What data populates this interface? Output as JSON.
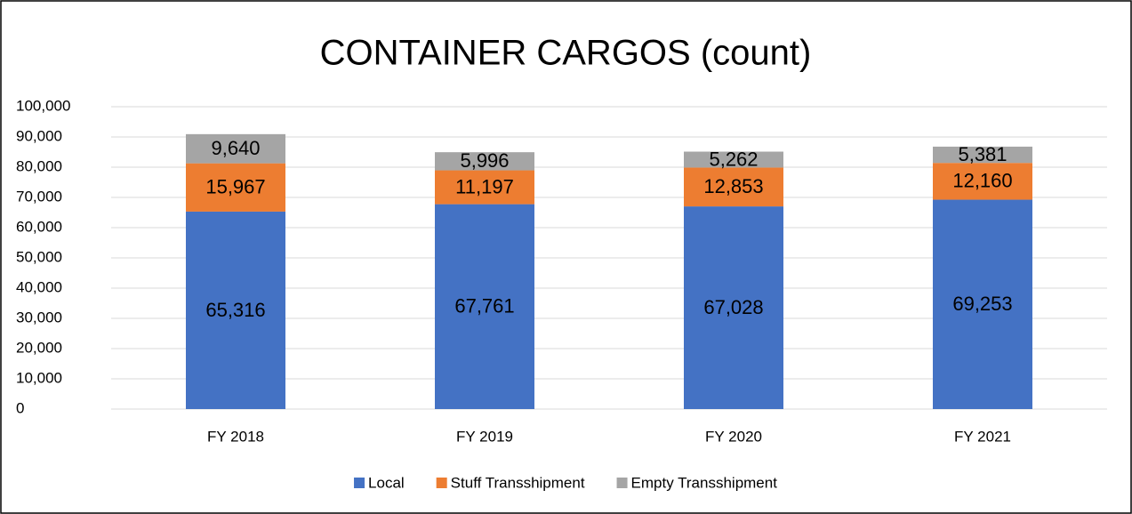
{
  "chart_data": {
    "type": "bar",
    "stacked": true,
    "title": "CONTAINER CARGOS (count)",
    "categories": [
      "FY 2018",
      "FY 2019",
      "FY 2020",
      "FY 2021"
    ],
    "series": [
      {
        "name": "Local",
        "color": "#4472c4",
        "values": [
          65316,
          67761,
          67028,
          69253
        ],
        "value_labels": [
          "65,316",
          "67,761",
          "67,028",
          "69,253"
        ]
      },
      {
        "name": "Stuff Transshipment",
        "color": "#ed7d31",
        "values": [
          15967,
          11197,
          12853,
          12160
        ],
        "value_labels": [
          "15,967",
          "11,197",
          "12,853",
          "12,160"
        ]
      },
      {
        "name": "Empty Transshipment",
        "color": "#a5a5a5",
        "values": [
          9640,
          5996,
          5262,
          5381
        ],
        "value_labels": [
          "9,640",
          "5,996",
          "5,262",
          "5,381"
        ]
      }
    ],
    "ylim": [
      0,
      100000
    ],
    "yticks": [
      0,
      {
        "value": 10000,
        "label": "10,000"
      },
      {
        "value": 20000,
        "label": "20,000"
      },
      {
        "value": 30000,
        "label": "30,000"
      },
      {
        "value": 40000,
        "label": "40,000"
      },
      {
        "value": 50000,
        "label": "50,000"
      },
      {
        "value": 60000,
        "label": "60,000"
      },
      {
        "value": 70000,
        "label": "70,000"
      },
      {
        "value": 80000,
        "label": "80,000"
      },
      {
        "value": 90000,
        "label": "90,000"
      },
      {
        "value": 100000,
        "label": "100,000"
      }
    ],
    "grid": true,
    "legend": "bottom"
  }
}
